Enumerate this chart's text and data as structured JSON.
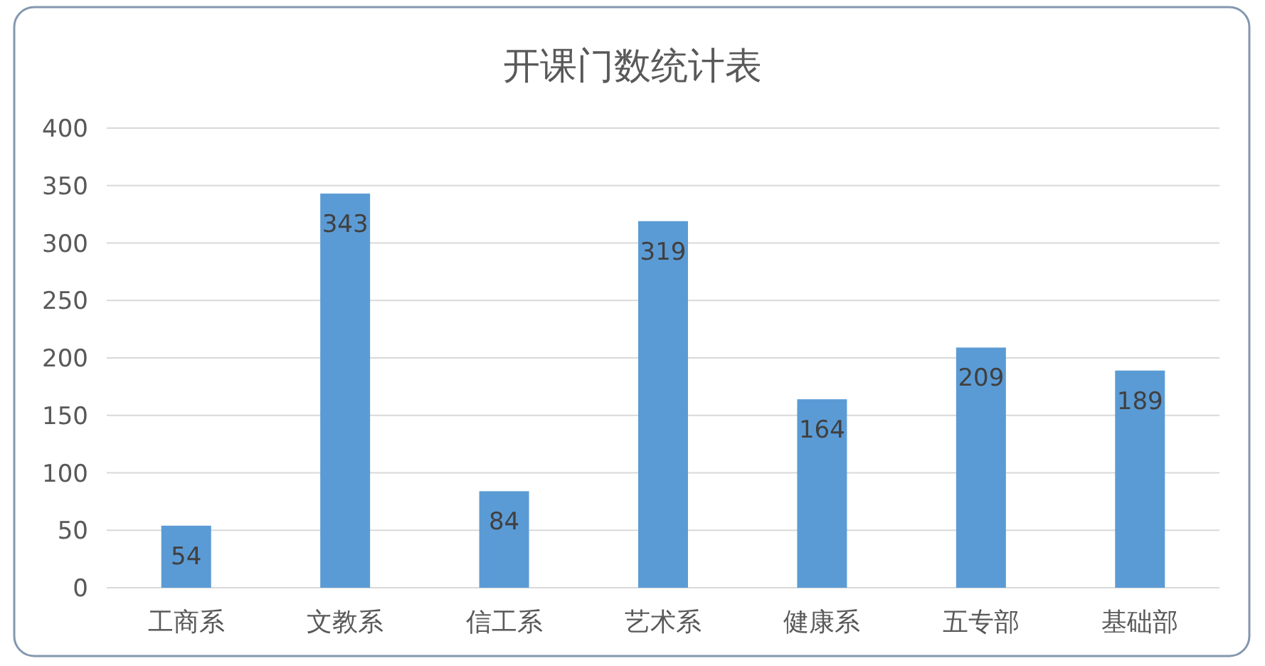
{
  "chart_data": {
    "type": "bar",
    "title": "开课门数统计表",
    "categories": [
      "工商系",
      "文教系",
      "信工系",
      "艺术系",
      "健康系",
      "五专部",
      "基础部"
    ],
    "values": [
      54,
      343,
      84,
      319,
      164,
      209,
      189
    ],
    "color": "#5b9bd5",
    "ylim": [
      0,
      400
    ],
    "yticks": [
      0,
      50,
      100,
      150,
      200,
      250,
      300,
      350,
      400
    ],
    "grid": "y",
    "data_labels": true
  }
}
